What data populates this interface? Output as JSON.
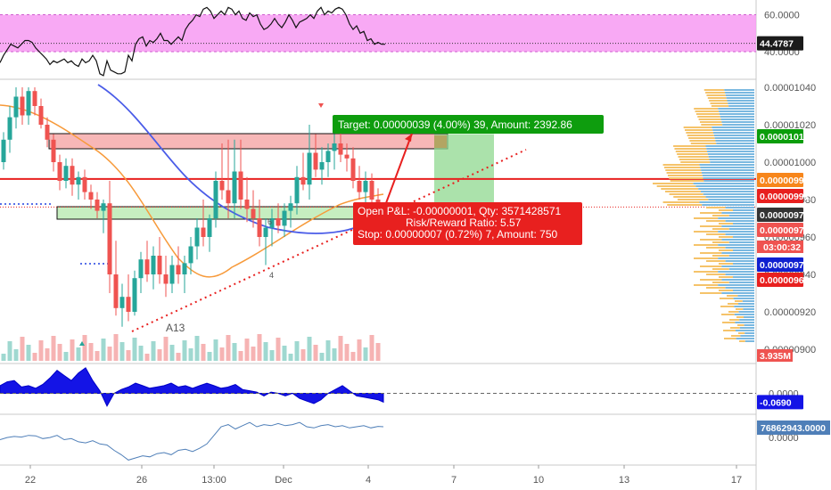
{
  "chart_data": [
    {
      "type": "line",
      "panel": "oscillator",
      "title": "",
      "yticks": [
        {
          "value": 60,
          "label": "60.0000"
        },
        {
          "value": 40,
          "label": "40.0000"
        }
      ],
      "current_value": {
        "value": 44.4787,
        "label": "44.4787"
      },
      "band": [
        40,
        60
      ],
      "ylim": [
        25,
        68
      ],
      "x": [
        0,
        4,
        8,
        12,
        16,
        20,
        24,
        28,
        32,
        36,
        40,
        44,
        48,
        52,
        56,
        60,
        64,
        68,
        72,
        76,
        80,
        84,
        88,
        92,
        96,
        100,
        104,
        108,
        112,
        116,
        120,
        124,
        128,
        132,
        136,
        140,
        144,
        148,
        152,
        156,
        160,
        164,
        168,
        172,
        176,
        180,
        184,
        188,
        192,
        196,
        200,
        204,
        208,
        212,
        216,
        220,
        224,
        228,
        232,
        236,
        240,
        244,
        248,
        252,
        256,
        260,
        264,
        268,
        272,
        276,
        280,
        284,
        288,
        292,
        296,
        300,
        304,
        308,
        312,
        316,
        320,
        324,
        328,
        332,
        336,
        340,
        344,
        348,
        352,
        356,
        360,
        364,
        368,
        372,
        376,
        380,
        384,
        388,
        392,
        396,
        400,
        404,
        408,
        412,
        416,
        420,
        424,
        428,
        432
      ],
      "values": [
        34,
        38,
        41,
        44,
        43,
        42,
        44,
        46,
        46,
        45,
        42,
        40,
        38,
        36,
        33,
        35,
        34,
        35,
        36,
        34,
        35,
        33,
        32,
        36,
        34,
        35,
        38,
        35,
        28,
        27,
        35,
        30,
        29,
        28,
        28,
        29,
        38,
        35,
        44,
        47,
        48,
        43,
        46,
        45,
        47,
        50,
        46,
        46,
        44,
        46,
        48,
        46,
        52,
        55,
        57,
        60,
        59,
        63,
        64,
        62,
        58,
        60,
        62,
        60,
        64,
        63,
        60,
        62,
        58,
        57,
        61,
        59,
        60,
        55,
        52,
        53,
        55,
        58,
        55,
        53,
        56,
        60,
        57,
        53,
        56,
        57,
        58,
        60,
        58,
        62,
        64,
        60,
        62,
        61,
        63,
        64,
        63,
        60,
        55,
        52,
        54,
        50,
        51,
        46,
        47,
        44,
        45,
        44,
        44
      ]
    },
    {
      "type": "candlestick",
      "panel": "price",
      "title": "",
      "x_axis_labels": [
        "22",
        "26",
        "13:00",
        "Dec",
        "4",
        "7",
        "10",
        "13",
        "17"
      ],
      "yticks": [
        {
          "value": 1.04e-05,
          "label": "0.00001040"
        },
        {
          "value": 1.02e-05,
          "label": "0.00001020"
        },
        {
          "value": 1e-05,
          "label": "0.00001000"
        },
        {
          "value": 9.8e-06,
          "label": "0.00000980"
        },
        {
          "value": 9.6e-06,
          "label": "0.00000960"
        },
        {
          "value": 9.4e-06,
          "label": "0.00000940"
        },
        {
          "value": 9.2e-06,
          "label": "0.00000920"
        },
        {
          "value": 9e-06,
          "label": "0.00000900"
        }
      ],
      "ylim": [
        9e-06,
        1.04e-05
      ],
      "price_labels": [
        {
          "value": 1.015e-05,
          "label": "0.00001015",
          "color": "#0a9d0a"
        },
        {
          "value": 9.91e-06,
          "label": "0.00000991",
          "color": "#f7861b"
        },
        {
          "value": 9.91e-06,
          "label": "0.00000991",
          "color": "#e8201f"
        },
        {
          "value": 9.76e-06,
          "label": "0.00000976",
          "color": "#333333"
        },
        {
          "value": 9.75e-06,
          "label": "0.00000975",
          "color": "#ef5350"
        },
        {
          "value": 9.72e-06,
          "label": "0.00000972",
          "color": "#1020d0"
        },
        {
          "value": 9.69e-06,
          "label": "0.00000969",
          "color": "#e8201f"
        }
      ],
      "countdown": "03:00:32",
      "volume_label": "3.935M",
      "position": {
        "target_text": "Target: 0.00000039 (4.00%) 39, Amount: 2392.86",
        "open_pnl_text": "Open P&L: -0.00000001, Qty: 3571428571",
        "risk_reward_text": "Risk/Reward Ratio: 5.57",
        "stop_text": "Stop: 0.00000007 (0.72%) 7, Amount: 750",
        "entry": 9.76e-06,
        "target": 1.015e-05,
        "stop": 9.69e-06
      },
      "annotations": [
        "A13",
        "4",
        "6"
      ],
      "candles": [
        {
          "x": 4,
          "o": 1e-05,
          "h": 1.016e-05,
          "l": 9.96e-06,
          "c": 1.012e-05
        },
        {
          "x": 11,
          "o": 1.012e-05,
          "h": 1.03e-05,
          "l": 1.005e-05,
          "c": 1.024e-05
        },
        {
          "x": 18,
          "o": 1.024e-05,
          "h": 1.04e-05,
          "l": 1.018e-05,
          "c": 1.035e-05
        },
        {
          "x": 25,
          "o": 1.035e-05,
          "h": 1.04e-05,
          "l": 1.02e-05,
          "c": 1.025e-05
        },
        {
          "x": 32,
          "o": 1.025e-05,
          "h": 1.04e-05,
          "l": 1.02e-05,
          "c": 1.038e-05
        },
        {
          "x": 39,
          "o": 1.038e-05,
          "h": 1.04e-05,
          "l": 1.025e-05,
          "c": 1.03e-05
        },
        {
          "x": 46,
          "o": 1.03e-05,
          "h": 1.034e-05,
          "l": 1.018e-05,
          "c": 1.02e-05
        },
        {
          "x": 53,
          "o": 1.02e-05,
          "h": 1.024e-05,
          "l": 1.008e-05,
          "c": 1.012e-05
        },
        {
          "x": 60,
          "o": 1.012e-05,
          "h": 1.015e-05,
          "l": 9.95e-06,
          "c": 1e-05
        },
        {
          "x": 67,
          "o": 1e-05,
          "h": 1.004e-05,
          "l": 9.85e-06,
          "c": 9.9e-06
        },
        {
          "x": 74,
          "o": 9.9e-06,
          "h": 1.002e-05,
          "l": 9.86e-06,
          "c": 9.98e-06
        },
        {
          "x": 81,
          "o": 9.98e-06,
          "h": 1.002e-05,
          "l": 9.82e-06,
          "c": 9.88e-06
        },
        {
          "x": 88,
          "o": 9.88e-06,
          "h": 9.95e-06,
          "l": 9.8e-06,
          "c": 9.92e-06
        },
        {
          "x": 95,
          "o": 9.92e-06,
          "h": 9.96e-06,
          "l": 9.8e-06,
          "c": 9.84e-06
        },
        {
          "x": 102,
          "o": 9.84e-06,
          "h": 9.88e-06,
          "l": 9.75e-06,
          "c": 9.8e-06
        },
        {
          "x": 109,
          "o": 9.8e-06,
          "h": 9.84e-06,
          "l": 9.7e-06,
          "c": 9.74e-06
        },
        {
          "x": 116,
          "o": 9.74e-06,
          "h": 9.8e-06,
          "l": 9.62e-06,
          "c": 9.78e-06
        },
        {
          "x": 123,
          "o": 9.78e-06,
          "h": 9.9e-06,
          "l": 9.3e-06,
          "c": 9.4e-06
        },
        {
          "x": 130,
          "o": 9.4e-06,
          "h": 9.58e-06,
          "l": 9.18e-06,
          "c": 9.22e-06
        },
        {
          "x": 137,
          "o": 9.22e-06,
          "h": 9.35e-06,
          "l": 9.12e-06,
          "c": 9.28e-06
        },
        {
          "x": 144,
          "o": 9.28e-06,
          "h": 9.4e-06,
          "l": 9.15e-06,
          "c": 9.2e-06
        },
        {
          "x": 151,
          "o": 9.2e-06,
          "h": 9.42e-06,
          "l": 9.18e-06,
          "c": 9.38e-06
        },
        {
          "x": 158,
          "o": 9.38e-06,
          "h": 9.52e-06,
          "l": 9.3e-06,
          "c": 9.48e-06
        },
        {
          "x": 165,
          "o": 9.48e-06,
          "h": 9.58e-06,
          "l": 9.36e-06,
          "c": 9.4e-06
        },
        {
          "x": 172,
          "o": 9.4e-06,
          "h": 9.55e-06,
          "l": 9.32e-06,
          "c": 9.5e-06
        },
        {
          "x": 179,
          "o": 9.5e-06,
          "h": 9.6e-06,
          "l": 9.35e-06,
          "c": 9.4e-06
        },
        {
          "x": 186,
          "o": 9.4e-06,
          "h": 9.5e-06,
          "l": 9.28e-06,
          "c": 9.35e-06
        },
        {
          "x": 193,
          "o": 9.35e-06,
          "h": 9.5e-06,
          "l": 9.3e-06,
          "c": 9.45e-06
        },
        {
          "x": 200,
          "o": 9.45e-06,
          "h": 9.55e-06,
          "l": 9.35e-06,
          "c": 9.4e-06
        },
        {
          "x": 207,
          "o": 9.4e-06,
          "h": 9.5e-06,
          "l": 9.3e-06,
          "c": 9.46e-06
        },
        {
          "x": 214,
          "o": 9.46e-06,
          "h": 9.6e-06,
          "l": 9.4e-06,
          "c": 9.55e-06
        },
        {
          "x": 221,
          "o": 9.55e-06,
          "h": 9.7e-06,
          "l": 9.48e-06,
          "c": 9.65e-06
        },
        {
          "x": 228,
          "o": 9.65e-06,
          "h": 9.8e-06,
          "l": 9.55e-06,
          "c": 9.6e-06
        },
        {
          "x": 235,
          "o": 9.6e-06,
          "h": 9.72e-06,
          "l": 9.52e-06,
          "c": 9.7e-06
        },
        {
          "x": 242,
          "o": 9.7e-06,
          "h": 9.95e-06,
          "l": 9.65e-06,
          "c": 9.9e-06
        },
        {
          "x": 249,
          "o": 9.9e-06,
          "h": 1.01e-05,
          "l": 9.8e-06,
          "c": 9.85e-06
        },
        {
          "x": 256,
          "o": 9.85e-06,
          "h": 1.012e-05,
          "l": 9.7e-06,
          "c": 9.78e-06
        },
        {
          "x": 263,
          "o": 9.78e-06,
          "h": 1.012e-05,
          "l": 9.7e-06,
          "c": 9.95e-06
        },
        {
          "x": 270,
          "o": 9.95e-06,
          "h": 1.012e-05,
          "l": 9.75e-06,
          "c": 9.8e-06
        },
        {
          "x": 277,
          "o": 9.8e-06,
          "h": 9.92e-06,
          "l": 9.68e-06,
          "c": 9.75e-06
        },
        {
          "x": 284,
          "o": 9.75e-06,
          "h": 9.85e-06,
          "l": 9.65e-06,
          "c": 9.7e-06
        },
        {
          "x": 291,
          "o": 9.7e-06,
          "h": 9.8e-06,
          "l": 9.55e-06,
          "c": 9.6e-06
        },
        {
          "x": 298,
          "o": 9.6e-06,
          "h": 9.7e-06,
          "l": 9.45e-06,
          "c": 9.65e-06
        },
        {
          "x": 305,
          "o": 9.65e-06,
          "h": 9.75e-06,
          "l": 9.55e-06,
          "c": 9.7e-06
        },
        {
          "x": 312,
          "o": 9.7e-06,
          "h": 9.78e-06,
          "l": 9.62e-06,
          "c": 9.66e-06
        },
        {
          "x": 319,
          "o": 9.66e-06,
          "h": 9.78e-06,
          "l": 9.6e-06,
          "c": 9.74e-06
        },
        {
          "x": 326,
          "o": 9.74e-06,
          "h": 9.82e-06,
          "l": 9.65e-06,
          "c": 9.78e-06
        },
        {
          "x": 333,
          "o": 9.78e-06,
          "h": 9.98e-06,
          "l": 9.72e-06,
          "c": 9.92e-06
        },
        {
          "x": 340,
          "o": 9.92e-06,
          "h": 1.005e-05,
          "l": 9.85e-06,
          "c": 9.88e-06
        },
        {
          "x": 347,
          "o": 9.88e-06,
          "h": 1.02e-05,
          "l": 9.8e-06,
          "c": 1.005e-05
        },
        {
          "x": 354,
          "o": 1.005e-05,
          "h": 1.015e-05,
          "l": 9.92e-06,
          "c": 9.96e-06
        },
        {
          "x": 361,
          "o": 9.96e-06,
          "h": 1.008e-05,
          "l": 9.88e-06,
          "c": 1e-05
        },
        {
          "x": 368,
          "o": 1e-05,
          "h": 1.01e-05,
          "l": 9.92e-06,
          "c": 1.006e-05
        },
        {
          "x": 375,
          "o": 1.006e-05,
          "h": 1.015e-05,
          "l": 9.96e-06,
          "c": 1.01e-05
        },
        {
          "x": 382,
          "o": 1.01e-05,
          "h": 1.016e-05,
          "l": 1e-05,
          "c": 1.004e-05
        },
        {
          "x": 389,
          "o": 1.004e-05,
          "h": 1.01e-05,
          "l": 9.95e-06,
          "c": 1.002e-05
        },
        {
          "x": 396,
          "o": 1.002e-05,
          "h": 1.008e-05,
          "l": 9.86e-06,
          "c": 9.9e-06
        },
        {
          "x": 403,
          "o": 9.9e-06,
          "h": 9.98e-06,
          "l": 9.8e-06,
          "c": 9.84e-06
        },
        {
          "x": 410,
          "o": 9.84e-06,
          "h": 9.95e-06,
          "l": 9.78e-06,
          "c": 9.9e-06
        },
        {
          "x": 417,
          "o": 9.9e-06,
          "h": 9.94e-06,
          "l": 9.75e-06,
          "c": 9.8e-06
        },
        {
          "x": 424,
          "o": 9.8e-06,
          "h": 9.86e-06,
          "l": 9.72e-06,
          "c": 9.76e-06
        }
      ]
    },
    {
      "type": "area",
      "panel": "momentum",
      "title": "",
      "yticks": [
        {
          "value": 0,
          "label": "0.0000"
        }
      ],
      "current_value": {
        "value": -0.069,
        "label": "-0.0690"
      },
      "ylim": [
        -0.15,
        0.22
      ],
      "x": [
        0,
        8,
        16,
        24,
        32,
        40,
        48,
        56,
        64,
        72,
        80,
        88,
        96,
        104,
        112,
        120,
        128,
        136,
        144,
        152,
        160,
        168,
        176,
        184,
        192,
        200,
        208,
        216,
        224,
        232,
        240,
        248,
        256,
        264,
        272,
        280,
        288,
        296,
        304,
        312,
        320,
        328,
        336,
        344,
        352,
        360,
        368,
        376,
        384,
        392,
        400,
        408,
        416,
        424,
        430
      ],
      "values": [
        0.06,
        0.09,
        0.1,
        0.05,
        0.06,
        0.04,
        0.07,
        0.12,
        0.18,
        0.14,
        0.1,
        0.16,
        0.2,
        0.1,
        0.02,
        -0.1,
        0.0,
        0.03,
        0.05,
        0.08,
        0.06,
        0.04,
        0.05,
        0.06,
        0.08,
        0.05,
        0.06,
        0.04,
        0.06,
        0.08,
        0.06,
        0.04,
        0.05,
        0.07,
        0.03,
        0.02,
        0.01,
        -0.02,
        0.01,
        0.0,
        -0.02,
        0.0,
        -0.04,
        -0.06,
        -0.08,
        -0.05,
        0.0,
        0.03,
        0.06,
        0.02,
        -0.02,
        -0.03,
        -0.04,
        -0.05,
        -0.069
      ]
    },
    {
      "type": "line",
      "panel": "volume_oscillator",
      "title": "",
      "yticks": [
        {
          "value": 0,
          "label": "0.0000"
        }
      ],
      "current_value": {
        "value": 76862943,
        "label": "76862943.0000"
      },
      "ylim": [
        -1.2,
        1.0
      ],
      "x": [
        0,
        8,
        16,
        24,
        32,
        40,
        48,
        56,
        64,
        72,
        80,
        88,
        96,
        104,
        112,
        120,
        128,
        136,
        144,
        152,
        160,
        168,
        176,
        184,
        192,
        200,
        208,
        216,
        224,
        232,
        240,
        248,
        256,
        264,
        272,
        280,
        288,
        296,
        304,
        312,
        320,
        328,
        336,
        344,
        352,
        360,
        368,
        376,
        384,
        392,
        400,
        408,
        416,
        424,
        430
      ],
      "values": [
        -0.1,
        0.0,
        0.05,
        0.02,
        0.1,
        0.08,
        -0.05,
        0.0,
        0.1,
        -0.1,
        -0.05,
        -0.2,
        -0.25,
        -0.15,
        -0.3,
        -0.35,
        -0.6,
        -0.8,
        -1.05,
        -0.95,
        -0.85,
        -0.9,
        -0.75,
        -0.7,
        -0.8,
        -0.6,
        -0.55,
        -0.65,
        -0.5,
        -0.3,
        0.1,
        0.5,
        0.6,
        0.4,
        0.55,
        0.7,
        0.5,
        0.6,
        0.55,
        0.65,
        0.55,
        0.6,
        0.7,
        0.5,
        0.45,
        0.55,
        0.6,
        0.5,
        0.55,
        0.45,
        0.5,
        0.55,
        0.45,
        0.52,
        0.5
      ]
    }
  ]
}
